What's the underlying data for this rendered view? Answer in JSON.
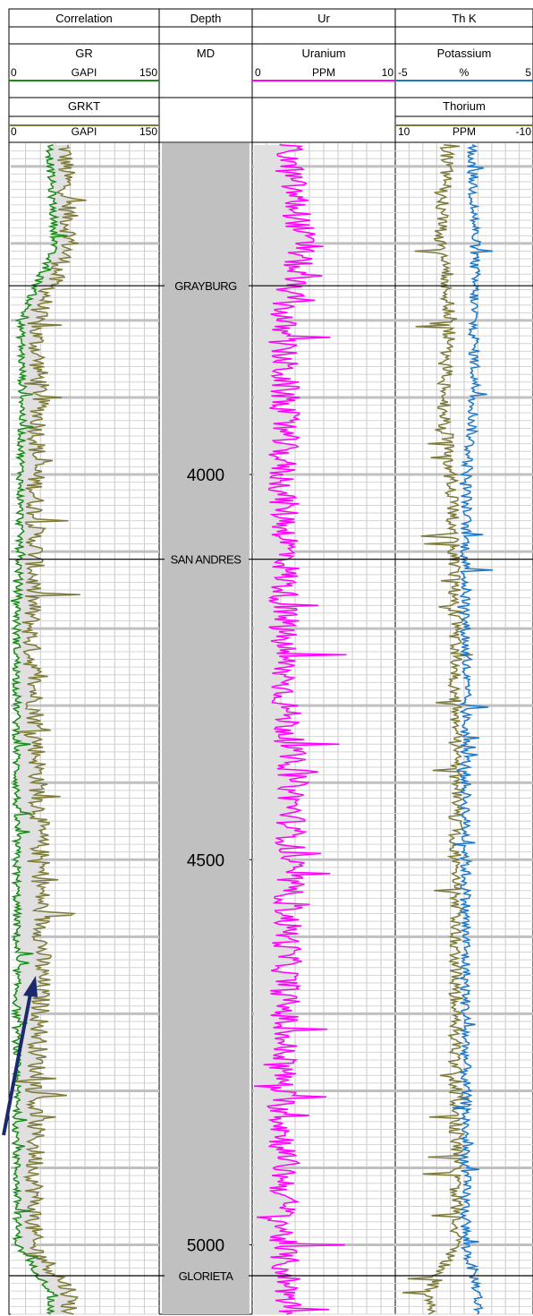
{
  "header": {
    "tracks": [
      {
        "title": "Correlation"
      },
      {
        "title": "Depth"
      },
      {
        "title": "Ur"
      },
      {
        "title": "Th K"
      }
    ],
    "curves": {
      "gr": {
        "name": "GR",
        "unit": "GAPI",
        "min": "0",
        "max": "150",
        "color": "#1a8a1a"
      },
      "grkt": {
        "name": "GRKT",
        "unit": "GAPI",
        "min": "0",
        "max": "150",
        "color": "#7d7a3a"
      },
      "depth": {
        "name": "MD"
      },
      "ur": {
        "name": "Uranium",
        "unit": "PPM",
        "min": "0",
        "max": "10",
        "color": "#ff00ff"
      },
      "k": {
        "name": "Potassium",
        "unit": "%",
        "min": "-5",
        "max": "5",
        "color": "#1e78c8"
      },
      "th": {
        "name": "Thorium",
        "unit": "PPM",
        "min": "10",
        "max": "-10",
        "color": "#7d7a3a"
      }
    }
  },
  "chart_data": {
    "type": "line",
    "depth_unit": "MD",
    "depth_ticks": [
      4000,
      4500,
      5000
    ],
    "depth_range": [
      3570,
      5090
    ],
    "formation_tops": [
      {
        "name": "GRAYBURG",
        "depth": 3755
      },
      {
        "name": "SAN ANDRES",
        "depth": 4110
      },
      {
        "name": "GLORIETA",
        "depth": 5040
      }
    ],
    "series": [
      {
        "name": "GR",
        "unit": "GAPI",
        "range": [
          0,
          150
        ],
        "depth": [
          3600,
          3700,
          3800,
          3900,
          4000,
          4100,
          4200,
          4300,
          4400,
          4500,
          4600,
          4700,
          4800,
          4900,
          5000,
          5060
        ],
        "values": [
          40,
          45,
          10,
          12,
          10,
          9,
          6,
          6,
          6,
          6,
          6,
          6,
          6,
          6,
          7,
          40
        ]
      },
      {
        "name": "GRKT",
        "unit": "GAPI",
        "range": [
          0,
          150
        ],
        "depth": [
          3600,
          3700,
          3800,
          3900,
          4000,
          4100,
          4200,
          4300,
          4400,
          4500,
          4600,
          4700,
          4800,
          4900,
          5000,
          5060
        ],
        "values": [
          55,
          60,
          25,
          30,
          25,
          25,
          20,
          25,
          28,
          30,
          32,
          30,
          25,
          25,
          22,
          60
        ]
      },
      {
        "name": "Uranium",
        "unit": "PPM",
        "range": [
          0,
          10
        ],
        "depth": [
          3600,
          3700,
          3800,
          3900,
          4000,
          4100,
          4200,
          4300,
          4400,
          4500,
          4600,
          4700,
          4800,
          4900,
          5000,
          5060
        ],
        "values": [
          2.5,
          3.5,
          2.0,
          2.2,
          2.0,
          2.4,
          2.0,
          2.3,
          2.8,
          2.6,
          2.4,
          2.2,
          2.0,
          2.2,
          2.0,
          2.5
        ]
      },
      {
        "name": "Potassium",
        "unit": "%",
        "range": [
          -5,
          5
        ],
        "depth": [
          3600,
          3700,
          3800,
          3900,
          4000,
          4100,
          4200,
          4300,
          4400,
          4500,
          4600,
          4700,
          4800,
          4900,
          5000,
          5060
        ],
        "values": [
          0.6,
          0.8,
          0.7,
          0.8,
          0.2,
          0.1,
          0.1,
          0.1,
          0.1,
          0.1,
          0.1,
          0.1,
          0.1,
          0.1,
          0.1,
          1.0
        ]
      },
      {
        "name": "Thorium",
        "unit": "PPM",
        "range": [
          10,
          -10
        ],
        "depth": [
          3600,
          3700,
          3800,
          3900,
          4000,
          4100,
          4200,
          4300,
          4400,
          4500,
          4600,
          4700,
          4800,
          4900,
          5000,
          5060
        ],
        "values": [
          2.5,
          3.5,
          2.0,
          3.0,
          2.0,
          1.5,
          1.2,
          1.2,
          1.2,
          1.2,
          1.2,
          1.2,
          1.2,
          1.2,
          1.2,
          5.0
        ]
      }
    ],
    "grid": true
  },
  "annotation": {
    "arrow_color": "#1a2a6c"
  }
}
